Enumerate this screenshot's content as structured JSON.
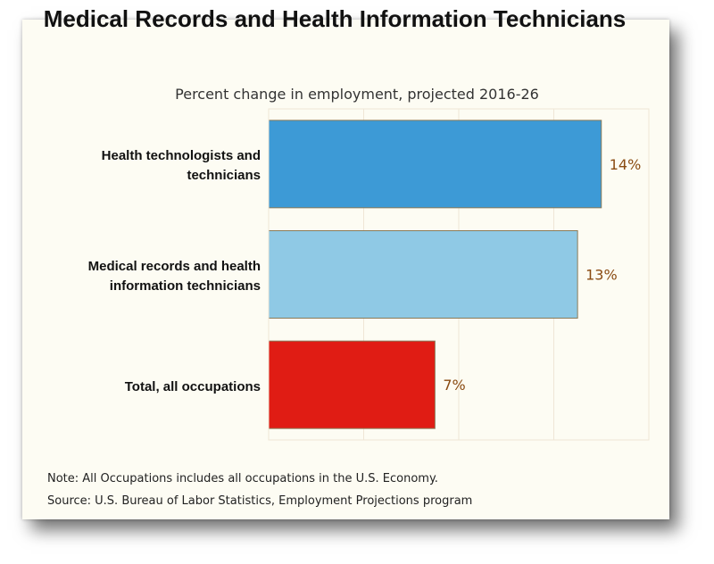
{
  "chart_data": {
    "type": "bar",
    "orientation": "horizontal",
    "title": "Medical Records and Health Information Technicians",
    "subtitle": "Percent change in employment, projected 2016-26",
    "categories": [
      "Health technologists and technicians",
      "Medical records and health information technicians",
      "Total, all occupations"
    ],
    "values": [
      14,
      13,
      7
    ],
    "value_labels": [
      "14%",
      "13%",
      "7%"
    ],
    "bar_colors": [
      "#3d9ad6",
      "#8fc9e5",
      "#e01c14"
    ],
    "xlim": [
      0,
      16
    ],
    "grid": true,
    "xlabel": "",
    "ylabel": ""
  },
  "notes": {
    "note": "Note: All Occupations includes all occupations in the U.S. Economy.",
    "source": "Source: U.S. Bureau of Labor Statistics, Employment Projections program"
  },
  "colors": {
    "background": "#fdfcf3",
    "gridline": "#efe6d6",
    "value_label": "#8a4b12",
    "bar_outline": "#8a7a58"
  }
}
